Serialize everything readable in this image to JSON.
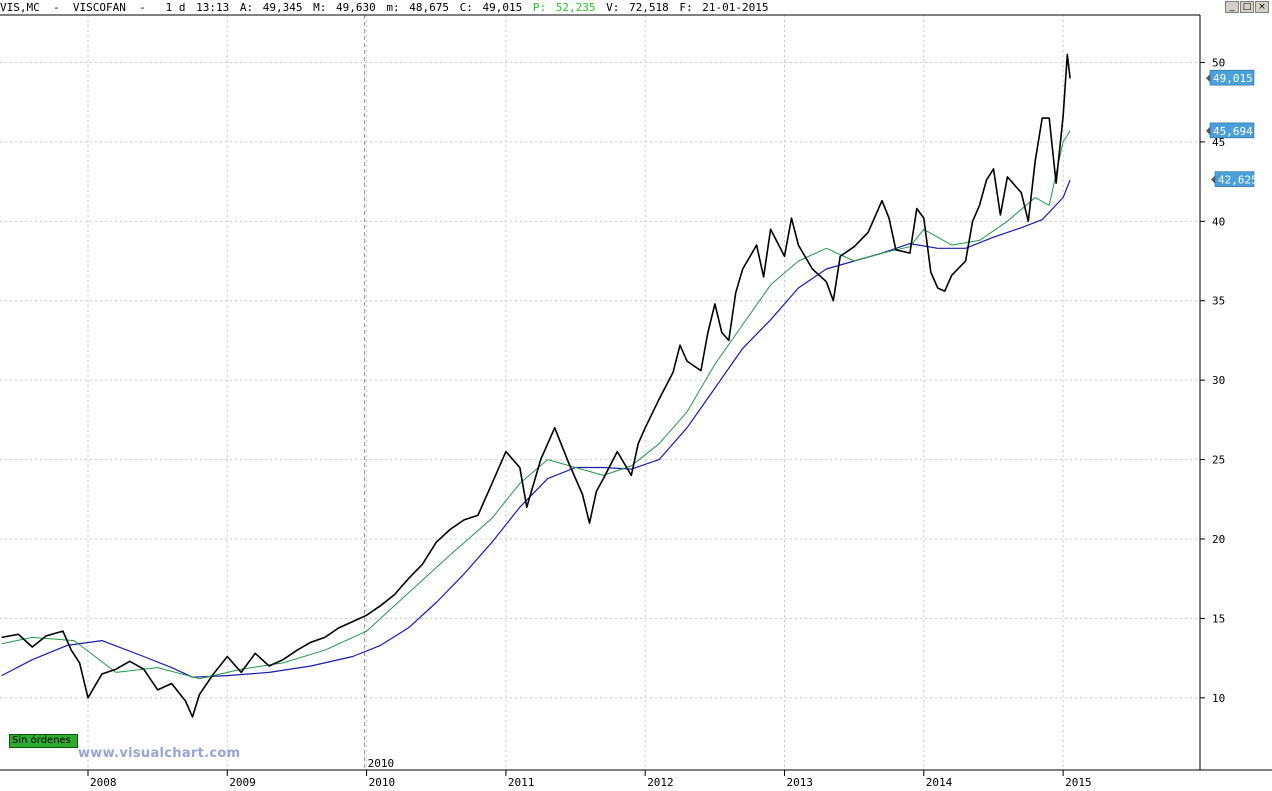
{
  "header": {
    "ticker": "VIS,MC",
    "name": "VISCOFAN",
    "period": "1 d",
    "time": "13:13",
    "open_label": "A:",
    "open": "49,345",
    "high_label": "M:",
    "high": "49,630",
    "low_label": "m:",
    "low": "48,675",
    "close_label": "C:",
    "close": "49,015",
    "p_label": "P:",
    "p_value": "52,235",
    "volume_label": "V:",
    "volume": "72,518",
    "date_label": "F:",
    "date": "21-01-2015"
  },
  "window_buttons": {
    "minimize": "_",
    "maximize": "□",
    "close": "×"
  },
  "status": {
    "orders": "Sin órdenes"
  },
  "watermark": "www.visualchart.com",
  "colors": {
    "price": "#000000",
    "ma_fast": "#1f9a4a",
    "ma_slow": "#1a1ab4",
    "tag_bg": "#4aa0d8",
    "orders_bg": "#2eaa2e",
    "grid": "#c8c8c8"
  },
  "chart_data": {
    "type": "line",
    "title": "",
    "xlabel": "",
    "ylabel": "",
    "x_ticks": [
      "2008",
      "2009",
      "2010",
      "2011",
      "2012",
      "2013",
      "2014",
      "2015"
    ],
    "year_marker": "2010",
    "y_ticks": [
      10,
      15,
      20,
      25,
      30,
      35,
      40,
      45,
      50
    ],
    "y_tick_labels": [
      "10",
      "15",
      "20",
      "25",
      "30",
      "35",
      "40",
      "45",
      "50"
    ],
    "ylim": [
      7,
      53
    ],
    "xlim": [
      2007.38,
      2015.96
    ],
    "grid": true,
    "value_tags": [
      {
        "label": "49,015",
        "value": 49.015
      },
      {
        "label": "45,694",
        "value": 45.694
      },
      {
        "label": "42,625",
        "value": 42.625
      }
    ],
    "series": [
      {
        "values_x": [
          2007.38,
          2007.5,
          2007.6,
          2007.7,
          2007.82,
          2007.88,
          2007.94,
          2008.0,
          2008.1,
          2008.2,
          2008.3,
          2008.4,
          2008.5,
          2008.6,
          2008.7,
          2008.75,
          2008.8,
          2008.9,
          2009.0,
          2009.1,
          2009.2,
          2009.3,
          2009.4,
          2009.5,
          2009.6,
          2009.7,
          2009.8,
          2009.9,
          2010.0,
          2010.1,
          2010.2,
          2010.3,
          2010.4,
          2010.5,
          2010.6,
          2010.7,
          2010.8,
          2010.9,
          2011.0,
          2011.1,
          2011.15,
          2011.25,
          2011.3,
          2011.35,
          2011.45,
          2011.55,
          2011.6,
          2011.65,
          2011.7,
          2011.8,
          2011.9,
          2011.95,
          2012.0,
          2012.1,
          2012.2,
          2012.25,
          2012.3,
          2012.4,
          2012.45,
          2012.5,
          2012.55,
          2012.6,
          2012.65,
          2012.7,
          2012.8,
          2012.85,
          2012.9,
          2013.0,
          2013.05,
          2013.1,
          2013.2,
          2013.3,
          2013.35,
          2013.4,
          2013.5,
          2013.6,
          2013.7,
          2013.75,
          2013.8,
          2013.9,
          2013.95,
          2014.0,
          2014.05,
          2014.1,
          2014.15,
          2014.2,
          2014.3,
          2014.35,
          2014.4,
          2014.45,
          2014.5,
          2014.55,
          2014.6,
          2014.7,
          2014.75,
          2014.8,
          2014.85,
          2014.9,
          2014.95,
          2015.0,
          2015.03,
          2015.05
        ],
        "values": [
          13.8,
          14.0,
          13.2,
          13.9,
          14.2,
          13.0,
          12.2,
          10.0,
          11.5,
          11.8,
          12.3,
          11.8,
          10.5,
          10.9,
          9.8,
          8.8,
          10.2,
          11.5,
          12.6,
          11.6,
          12.8,
          12.0,
          12.4,
          13.0,
          13.5,
          13.8,
          14.4,
          14.8,
          15.2,
          15.8,
          16.5,
          17.5,
          18.4,
          19.8,
          20.6,
          21.2,
          21.5,
          23.5,
          25.5,
          24.5,
          22.0,
          25.0,
          26.0,
          27.0,
          24.8,
          22.8,
          21.0,
          23.0,
          23.8,
          25.5,
          24.0,
          26.0,
          27.0,
          28.8,
          30.5,
          32.2,
          31.2,
          30.6,
          33.0,
          34.8,
          33.0,
          32.5,
          35.5,
          37.0,
          38.5,
          36.5,
          39.5,
          37.8,
          40.2,
          38.5,
          37.0,
          36.2,
          35.0,
          37.8,
          38.4,
          39.3,
          41.3,
          40.2,
          38.2,
          38.0,
          40.8,
          40.2,
          36.8,
          35.8,
          35.6,
          36.6,
          37.5,
          40.0,
          41.0,
          42.6,
          43.3,
          40.4,
          42.8,
          41.8,
          40.0,
          43.8,
          46.5,
          46.5,
          42.4,
          46.6,
          50.5,
          49.0
        ]
      },
      {
        "values_x": [
          2007.38,
          2007.6,
          2007.9,
          2008.2,
          2008.5,
          2008.8,
          2009.1,
          2009.4,
          2009.7,
          2010.0,
          2010.3,
          2010.6,
          2010.9,
          2011.1,
          2011.3,
          2011.5,
          2011.7,
          2011.9,
          2012.1,
          2012.3,
          2012.5,
          2012.7,
          2012.9,
          2013.1,
          2013.3,
          2013.5,
          2013.7,
          2013.9,
          2014.0,
          2014.2,
          2014.4,
          2014.6,
          2014.8,
          2014.9,
          2015.0,
          2015.05
        ],
        "values": [
          13.4,
          13.8,
          13.6,
          11.6,
          11.9,
          11.2,
          11.8,
          12.2,
          13.0,
          14.2,
          16.6,
          19.0,
          21.3,
          23.5,
          25.0,
          24.5,
          24.0,
          24.6,
          26.0,
          28.0,
          31.0,
          33.5,
          36.0,
          37.5,
          38.3,
          37.5,
          38.0,
          38.4,
          39.5,
          38.5,
          38.8,
          40.0,
          41.5,
          41.0,
          45.0,
          45.7
        ]
      },
      {
        "values_x": [
          2007.38,
          2007.6,
          2007.85,
          2008.1,
          2008.4,
          2008.6,
          2008.75,
          2009.0,
          2009.3,
          2009.6,
          2009.9,
          2010.1,
          2010.3,
          2010.5,
          2010.7,
          2010.9,
          2011.1,
          2011.3,
          2011.5,
          2011.7,
          2011.9,
          2012.1,
          2012.3,
          2012.5,
          2012.7,
          2012.9,
          2013.1,
          2013.3,
          2013.5,
          2013.7,
          2013.9,
          2014.1,
          2014.3,
          2014.5,
          2014.7,
          2014.85,
          2015.0,
          2015.05
        ],
        "values": [
          11.4,
          12.4,
          13.3,
          13.6,
          12.6,
          11.9,
          11.3,
          11.4,
          11.6,
          12.0,
          12.6,
          13.3,
          14.4,
          16.0,
          17.8,
          19.8,
          22.0,
          23.8,
          24.5,
          24.5,
          24.4,
          25.0,
          27.0,
          29.5,
          32.0,
          33.8,
          35.8,
          37.0,
          37.5,
          38.0,
          38.6,
          38.3,
          38.3,
          39.0,
          39.6,
          40.1,
          41.5,
          42.6
        ]
      }
    ]
  }
}
